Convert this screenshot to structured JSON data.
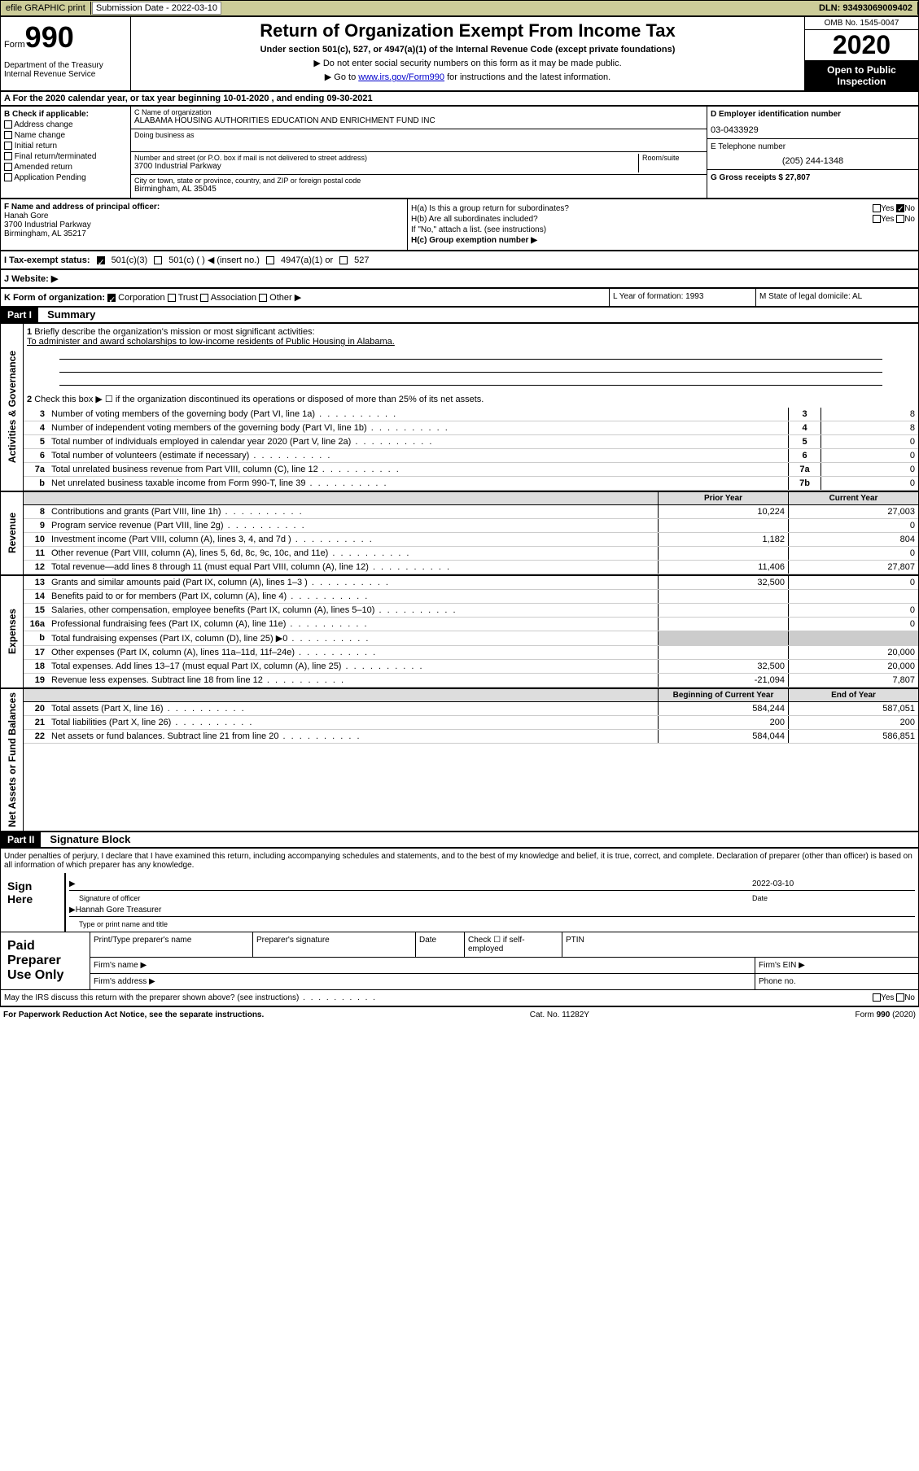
{
  "topbar": {
    "efile": "efile GRAPHIC print",
    "submission_label": "Submission Date - 2022-03-10",
    "dln": "DLN: 93493069009402"
  },
  "header": {
    "form_label": "Form",
    "form_number": "990",
    "dept": "Department of the Treasury\nInternal Revenue Service",
    "title": "Return of Organization Exempt From Income Tax",
    "subtitle": "Under section 501(c), 527, or 4947(a)(1) of the Internal Revenue Code (except private foundations)",
    "instr1": "▶ Do not enter social security numbers on this form as it may be made public.",
    "instr2_pre": "▶ Go to ",
    "instr2_link": "www.irs.gov/Form990",
    "instr2_post": " for instructions and the latest information.",
    "omb": "OMB No. 1545-0047",
    "year": "2020",
    "inspection": "Open to Public Inspection"
  },
  "section_a": "A For the 2020 calendar year, or tax year beginning 10-01-2020    , and ending 09-30-2021",
  "box_b": {
    "label": "B Check if applicable:",
    "items": [
      "Address change",
      "Name change",
      "Initial return",
      "Final return/terminated",
      "Amended return",
      "Application Pending"
    ]
  },
  "box_c": {
    "name_label": "C Name of organization",
    "name": "ALABAMA HOUSING AUTHORITIES EDUCATION AND ENRICHMENT FUND INC",
    "dba_label": "Doing business as",
    "street_label": "Number and street (or P.O. box if mail is not delivered to street address)",
    "room_label": "Room/suite",
    "street": "3700 Industrial Parkway",
    "city_label": "City or town, state or province, country, and ZIP or foreign postal code",
    "city": "Birmingham, AL  35045"
  },
  "box_d": {
    "ein_label": "D Employer identification number",
    "ein": "03-0433929",
    "phone_label": "E Telephone number",
    "phone": "(205) 244-1348",
    "receipts_label": "G Gross receipts $ 27,807"
  },
  "box_f": {
    "label": "F  Name and address of principal officer:",
    "name": "Hanah Gore",
    "addr1": "3700 Industrial Parkway",
    "addr2": "Birmingham, AL  35217"
  },
  "box_h": {
    "ha": "H(a)  Is this a group return for subordinates?",
    "hb": "H(b)  Are all subordinates included?",
    "hb_note": "If \"No,\" attach a list. (see instructions)",
    "hc": "H(c)  Group exemption number ▶",
    "yes": "Yes",
    "no": "No"
  },
  "tax_status": {
    "label": "I  Tax-exempt status:",
    "opt1": "501(c)(3)",
    "opt2": "501(c) (  ) ◀ (insert no.)",
    "opt3": "4947(a)(1) or",
    "opt4": "527"
  },
  "website": "J  Website: ▶",
  "box_k": {
    "label": "K Form of organization:",
    "opts": [
      "Corporation",
      "Trust",
      "Association",
      "Other ▶"
    ]
  },
  "box_l": "L Year of formation: 1993",
  "box_m": "M State of legal domicile: AL",
  "part1": {
    "header": "Part I",
    "title": "Summary",
    "vlabel_gov": "Activities & Governance",
    "vlabel_rev": "Revenue",
    "vlabel_exp": "Expenses",
    "vlabel_net": "Net Assets or Fund Balances",
    "line1_label": "Briefly describe the organization's mission or most significant activities:",
    "line1_text": "To administer and award scholarships to low-income residents of Public Housing in Alabama.",
    "line2": "Check this box ▶ ☐  if the organization discontinued its operations or disposed of more than 25% of its net assets.",
    "lines_gov": [
      {
        "num": "3",
        "desc": "Number of voting members of the governing body (Part VI, line 1a)",
        "box": "3",
        "val": "8"
      },
      {
        "num": "4",
        "desc": "Number of independent voting members of the governing body (Part VI, line 1b)",
        "box": "4",
        "val": "8"
      },
      {
        "num": "5",
        "desc": "Total number of individuals employed in calendar year 2020 (Part V, line 2a)",
        "box": "5",
        "val": "0"
      },
      {
        "num": "6",
        "desc": "Total number of volunteers (estimate if necessary)",
        "box": "6",
        "val": "0"
      },
      {
        "num": "7a",
        "desc": "Total unrelated business revenue from Part VIII, column (C), line 12",
        "box": "7a",
        "val": "0"
      },
      {
        "num": "b",
        "desc": "Net unrelated business taxable income from Form 990-T, line 39",
        "box": "7b",
        "val": "0"
      }
    ],
    "col_prior": "Prior Year",
    "col_current": "Current Year",
    "lines_rev": [
      {
        "num": "8",
        "desc": "Contributions and grants (Part VIII, line 1h)",
        "prior": "10,224",
        "current": "27,003"
      },
      {
        "num": "9",
        "desc": "Program service revenue (Part VIII, line 2g)",
        "prior": "",
        "current": "0"
      },
      {
        "num": "10",
        "desc": "Investment income (Part VIII, column (A), lines 3, 4, and 7d )",
        "prior": "1,182",
        "current": "804"
      },
      {
        "num": "11",
        "desc": "Other revenue (Part VIII, column (A), lines 5, 6d, 8c, 9c, 10c, and 11e)",
        "prior": "",
        "current": "0"
      },
      {
        "num": "12",
        "desc": "Total revenue—add lines 8 through 11 (must equal Part VIII, column (A), line 12)",
        "prior": "11,406",
        "current": "27,807"
      }
    ],
    "lines_exp": [
      {
        "num": "13",
        "desc": "Grants and similar amounts paid (Part IX, column (A), lines 1–3 )",
        "prior": "32,500",
        "current": "0"
      },
      {
        "num": "14",
        "desc": "Benefits paid to or for members (Part IX, column (A), line 4)",
        "prior": "",
        "current": ""
      },
      {
        "num": "15",
        "desc": "Salaries, other compensation, employee benefits (Part IX, column (A), lines 5–10)",
        "prior": "",
        "current": "0"
      },
      {
        "num": "16a",
        "desc": "Professional fundraising fees (Part IX, column (A), line 11e)",
        "prior": "",
        "current": "0"
      },
      {
        "num": "b",
        "desc": "Total fundraising expenses (Part IX, column (D), line 25) ▶0",
        "prior": "gray",
        "current": "gray"
      },
      {
        "num": "17",
        "desc": "Other expenses (Part IX, column (A), lines 11a–11d, 11f–24e)",
        "prior": "",
        "current": "20,000"
      },
      {
        "num": "18",
        "desc": "Total expenses. Add lines 13–17 (must equal Part IX, column (A), line 25)",
        "prior": "32,500",
        "current": "20,000"
      },
      {
        "num": "19",
        "desc": "Revenue less expenses. Subtract line 18 from line 12",
        "prior": "-21,094",
        "current": "7,807"
      }
    ],
    "col_begin": "Beginning of Current Year",
    "col_end": "End of Year",
    "lines_net": [
      {
        "num": "20",
        "desc": "Total assets (Part X, line 16)",
        "prior": "584,244",
        "current": "587,051"
      },
      {
        "num": "21",
        "desc": "Total liabilities (Part X, line 26)",
        "prior": "200",
        "current": "200"
      },
      {
        "num": "22",
        "desc": "Net assets or fund balances. Subtract line 21 from line 20",
        "prior": "584,044",
        "current": "586,851"
      }
    ]
  },
  "part2": {
    "header": "Part II",
    "title": "Signature Block",
    "declaration": "Under penalties of perjury, I declare that I have examined this return, including accompanying schedules and statements, and to the best of my knowledge and belief, it is true, correct, and complete. Declaration of preparer (other than officer) is based on all information of which preparer has any knowledge.",
    "sign_here": "Sign Here",
    "sig_officer": "Signature of officer",
    "sig_date": "2022-03-10",
    "date_label": "Date",
    "name_title": "Hannah Gore  Treasurer",
    "type_label": "Type or print name and title",
    "paid_label": "Paid Preparer Use Only",
    "prep_name": "Print/Type preparer's name",
    "prep_sig": "Preparer's signature",
    "prep_date": "Date",
    "prep_check": "Check ☐ if self-employed",
    "ptin": "PTIN",
    "firm_name": "Firm's name    ▶",
    "firm_ein": "Firm's EIN ▶",
    "firm_addr": "Firm's address ▶",
    "phone": "Phone no.",
    "discuss": "May the IRS discuss this return with the preparer shown above? (see instructions)"
  },
  "footer": {
    "paperwork": "For Paperwork Reduction Act Notice, see the separate instructions.",
    "cat": "Cat. No. 11282Y",
    "form": "Form 990 (2020)"
  }
}
